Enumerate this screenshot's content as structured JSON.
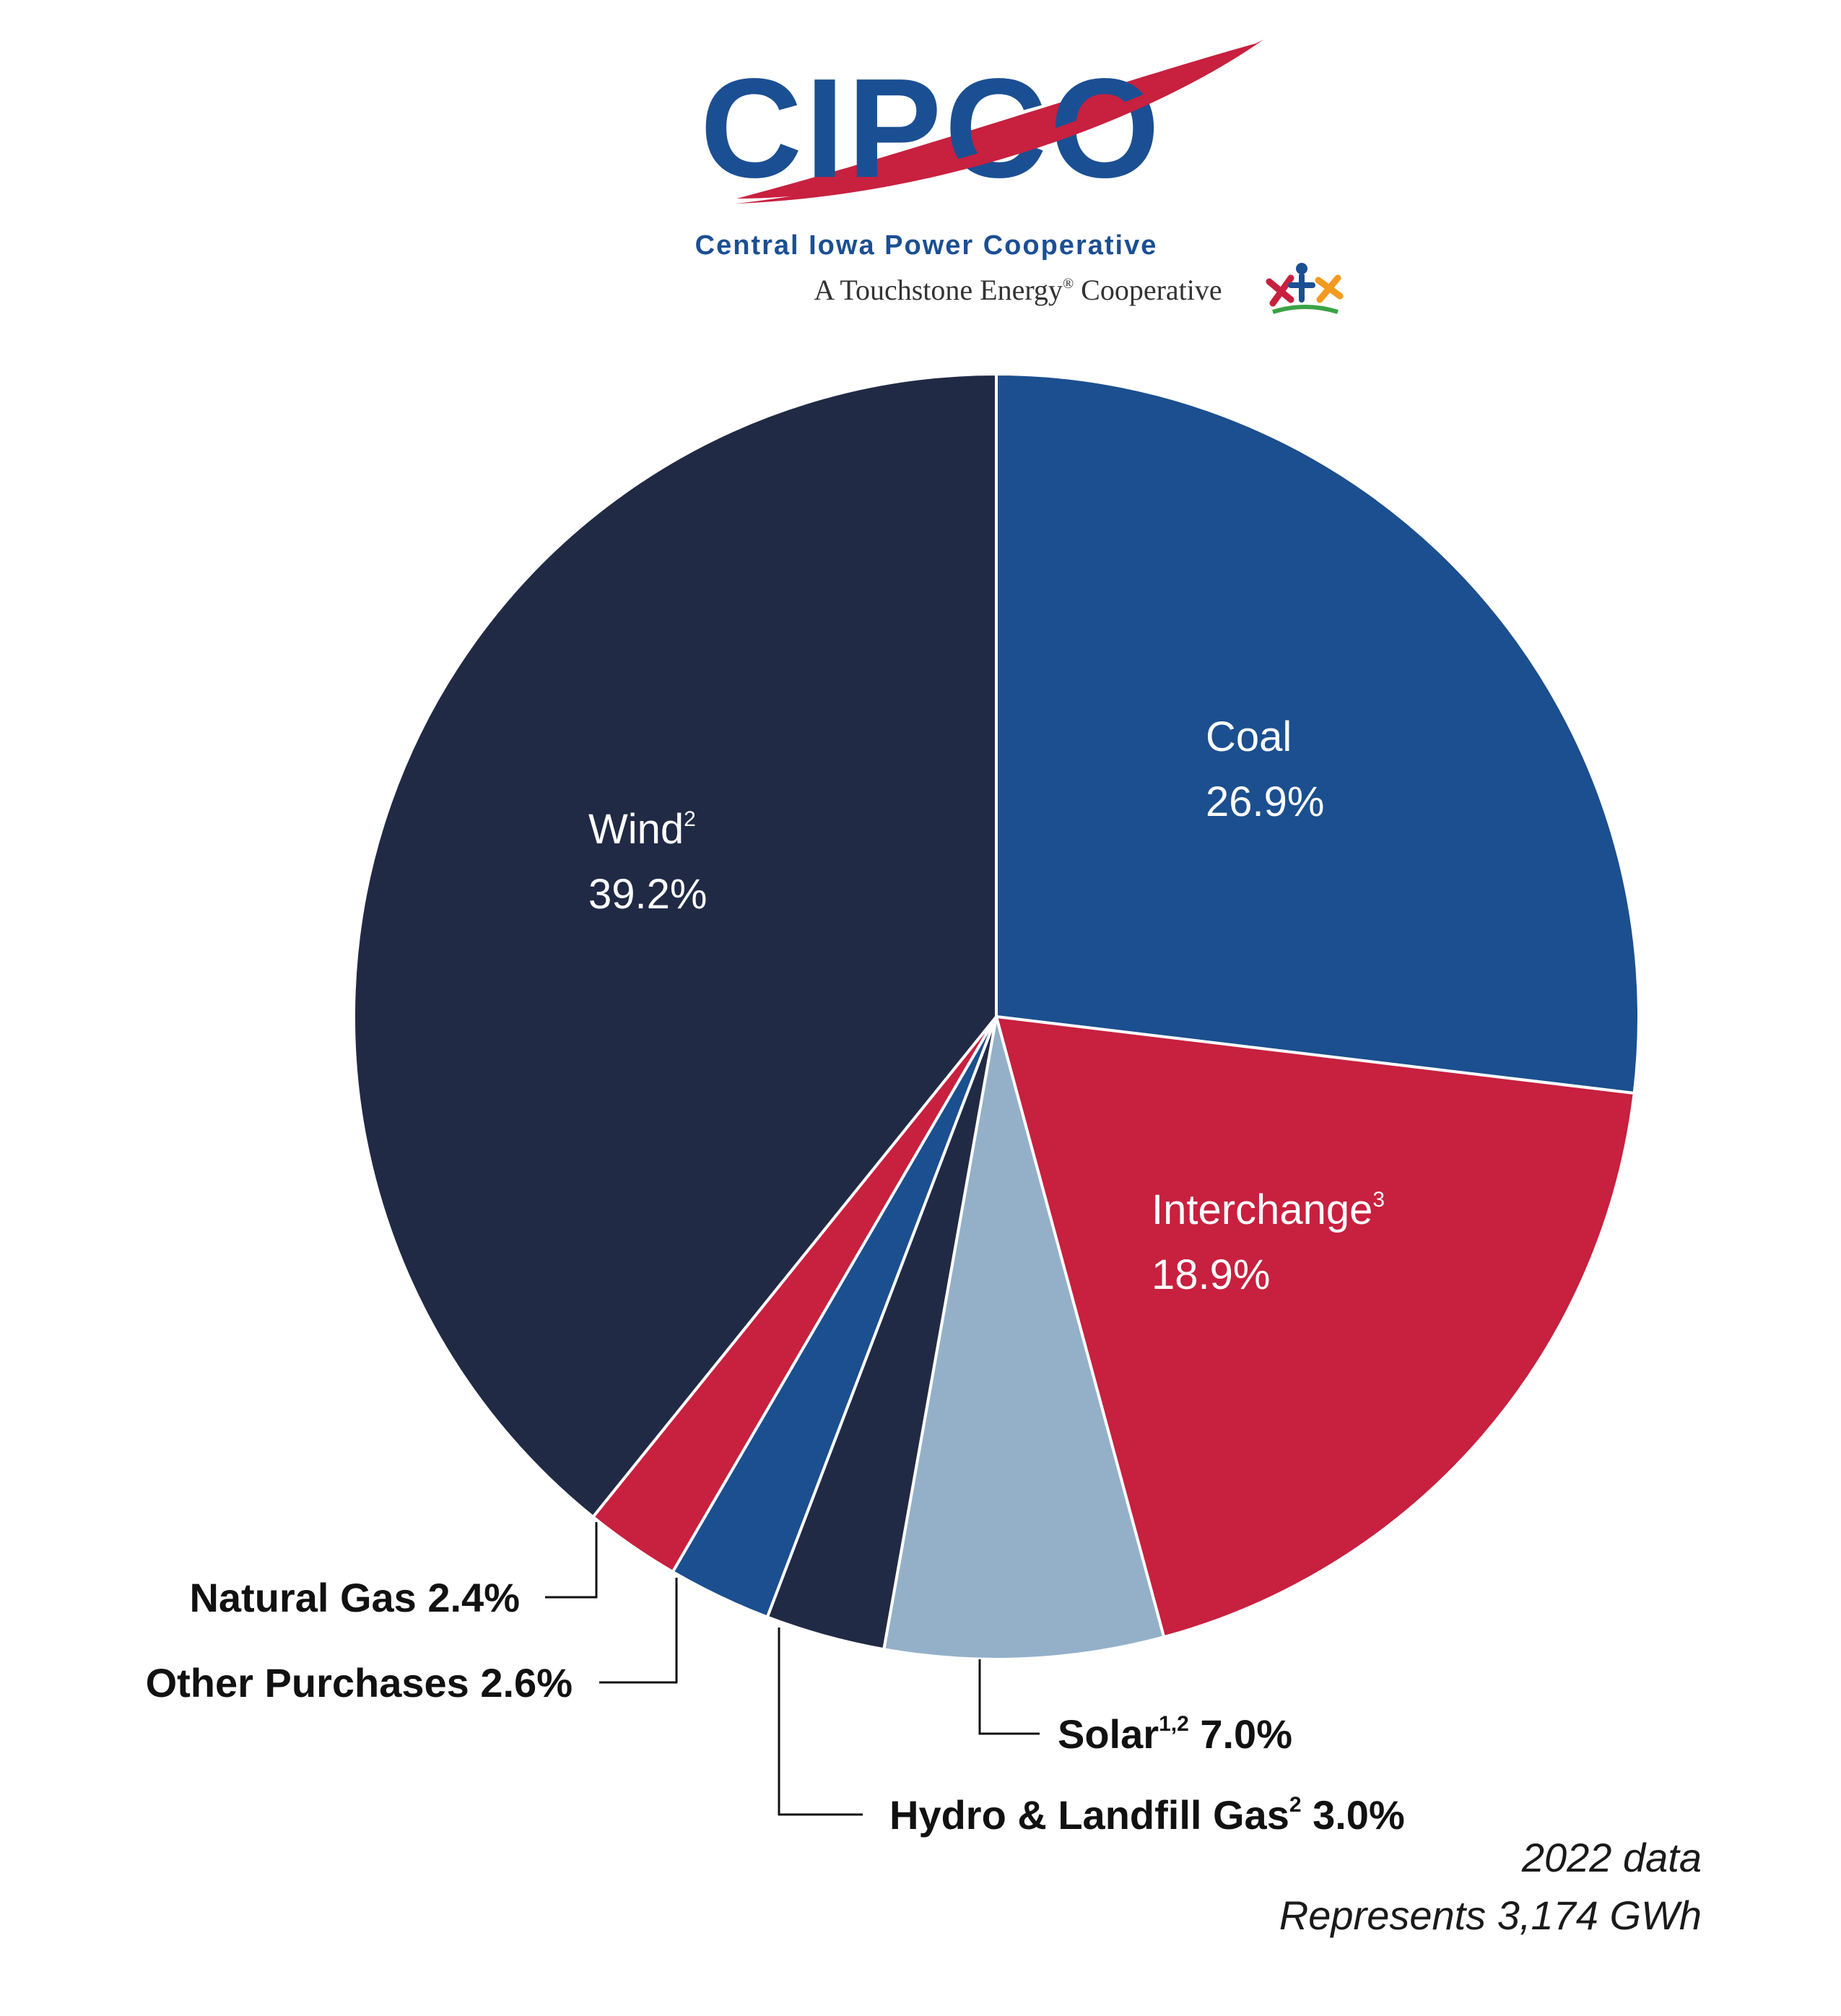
{
  "logo": {
    "wordmark": "CIPCO",
    "name": "Central Iowa Power Cooperative",
    "tagline_a": "A Touchstone Energy",
    "tagline_reg": "®",
    "tagline_b": "Cooperative",
    "colors": {
      "blue": "#1b4f93",
      "red": "#c8203f"
    }
  },
  "chart_data": {
    "type": "pie",
    "slices": [
      {
        "label": "Coal",
        "sup": "",
        "value": 26.9,
        "value_text": "26.9%",
        "color": "#1b4f8f",
        "label_style": "inside"
      },
      {
        "label": "Interchange",
        "sup": "3",
        "value": 18.9,
        "value_text": "18.9%",
        "color": "#c8203f",
        "label_style": "inside"
      },
      {
        "label": "Solar",
        "sup": "1,2",
        "value": 7.0,
        "value_text": "7.0%",
        "color": "#94b0c8",
        "label_style": "callout"
      },
      {
        "label": "Hydro & Landfill Gas",
        "sup": "2",
        "value": 3.0,
        "value_text": "3.0%",
        "color": "#212a45",
        "label_style": "callout"
      },
      {
        "label": "Other Purchases",
        "sup": "",
        "value": 2.6,
        "value_text": "2.6%",
        "color": "#1b4f8f",
        "label_style": "callout"
      },
      {
        "label": "Natural Gas",
        "sup": "",
        "value": 2.4,
        "value_text": "2.4%",
        "color": "#c8203f",
        "label_style": "callout"
      },
      {
        "label": "Wind",
        "sup": "2",
        "value": 39.2,
        "value_text": "39.2%",
        "color": "#212a45",
        "label_style": "inside"
      }
    ],
    "start": "12 o'clock",
    "direction": "clockwise"
  },
  "notes": {
    "line1": "2022 data",
    "line2": "Represents 3,174 GWh"
  }
}
